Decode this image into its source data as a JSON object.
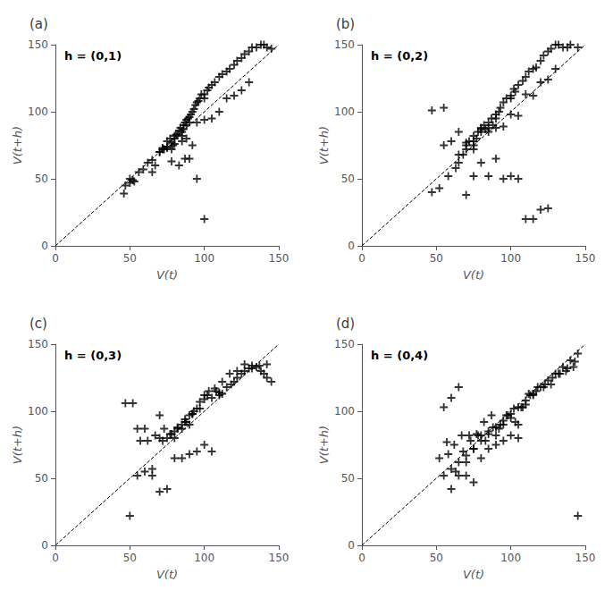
{
  "chart_data": [
    {
      "type": "scatter",
      "title": "(a)",
      "annotation": "h = (0,1)",
      "xlabel": "V(t)",
      "ylabel": "V(t+h)",
      "xlim": [
        0,
        150
      ],
      "ylim": [
        0,
        150
      ],
      "xticks": [
        0,
        50,
        100,
        150
      ],
      "yticks": [
        0,
        50,
        100,
        150
      ],
      "grid": false,
      "series": [
        {
          "type": "scatter",
          "marker": "+",
          "color": "black",
          "x": [
            46,
            47,
            50,
            53,
            56,
            59,
            62,
            65,
            67,
            70,
            72,
            73,
            75,
            75,
            77,
            78,
            78,
            79,
            80,
            80,
            81,
            82,
            83,
            84,
            85,
            85,
            86,
            86,
            87,
            88,
            88,
            89,
            90,
            90,
            91,
            92,
            93,
            94,
            95,
            96,
            97,
            98,
            100,
            100,
            102,
            103,
            105,
            107,
            110,
            112,
            115,
            117,
            120,
            122,
            125,
            127,
            130,
            132,
            135,
            138,
            140,
            142,
            145,
            80,
            85,
            88,
            92,
            95,
            100,
            105,
            110,
            115,
            120,
            125,
            130,
            90,
            95,
            100,
            78,
            83,
            87,
            50,
            52,
            65,
            70,
            72,
            75
          ],
          "values": [
            39,
            45,
            50,
            48,
            55,
            57,
            62,
            64,
            60,
            70,
            73,
            72,
            78,
            74,
            80,
            77,
            72,
            75,
            80,
            76,
            83,
            83,
            86,
            88,
            82,
            85,
            90,
            87,
            92,
            94,
            90,
            95,
            96,
            92,
            98,
            100,
            102,
            105,
            107,
            108,
            110,
            113,
            113,
            110,
            116,
            118,
            120,
            122,
            126,
            128,
            130,
            132,
            135,
            138,
            140,
            143,
            145,
            148,
            148,
            150,
            150,
            148,
            147,
            82,
            78,
            80,
            75,
            92,
            94,
            95,
            100,
            110,
            112,
            116,
            122,
            65,
            50,
            20,
            63,
            60,
            65,
            47,
            49,
            55,
            70,
            72,
            73
          ]
        },
        {
          "type": "line",
          "line_style": "dashed",
          "color": "black",
          "x": [
            0,
            150
          ],
          "values": [
            0,
            150
          ]
        }
      ]
    },
    {
      "type": "scatter",
      "title": "(b)",
      "annotation": "h = (0,2)",
      "xlabel": "V(t)",
      "ylabel": "V(t+h)",
      "xlim": [
        0,
        150
      ],
      "ylim": [
        0,
        150
      ],
      "xticks": [
        0,
        50,
        100,
        150
      ],
      "yticks": [
        0,
        50,
        100,
        150
      ],
      "grid": false,
      "series": [
        {
          "type": "scatter",
          "marker": "+",
          "color": "black",
          "x": [
            47,
            52,
            58,
            63,
            65,
            68,
            70,
            72,
            75,
            75,
            77,
            78,
            80,
            80,
            82,
            83,
            85,
            85,
            87,
            88,
            90,
            90,
            92,
            93,
            95,
            97,
            100,
            100,
            102,
            103,
            105,
            108,
            110,
            112,
            115,
            117,
            120,
            122,
            125,
            127,
            130,
            132,
            135,
            138,
            140,
            145,
            47,
            55,
            65,
            70,
            75,
            80,
            85,
            90,
            95,
            100,
            105,
            110,
            115,
            120,
            125,
            130,
            70,
            75,
            80,
            85,
            90,
            95,
            100,
            105,
            110,
            115,
            120,
            125,
            60,
            65,
            70,
            75,
            55
          ],
          "values": [
            40,
            43,
            52,
            58,
            62,
            68,
            72,
            78,
            75,
            82,
            80,
            85,
            88,
            85,
            90,
            87,
            92,
            88,
            95,
            90,
            98,
            95,
            100,
            103,
            107,
            110,
            112,
            110,
            117,
            115,
            120,
            123,
            126,
            130,
            132,
            133,
            138,
            142,
            145,
            147,
            150,
            150,
            148,
            148,
            150,
            148,
            101,
            75,
            68,
            77,
            78,
            87,
            85,
            88,
            89,
            98,
            97,
            113,
            112,
            122,
            124,
            132,
            38,
            52,
            62,
            52,
            65,
            50,
            52,
            50,
            20,
            20,
            27,
            28,
            78,
            85,
            75,
            72,
            103
          ]
        },
        {
          "type": "line",
          "line_style": "dashed",
          "color": "black",
          "x": [
            0,
            150
          ],
          "values": [
            0,
            150
          ]
        }
      ]
    },
    {
      "type": "scatter",
      "title": "(c)",
      "annotation": "h = (0,3)",
      "xlabel": "V(t)",
      "ylabel": "V(t+h)",
      "xlim": [
        0,
        150
      ],
      "ylim": [
        0,
        150
      ],
      "xticks": [
        0,
        50,
        100,
        150
      ],
      "yticks": [
        0,
        50,
        100,
        150
      ],
      "grid": false,
      "series": [
        {
          "type": "scatter",
          "marker": "+",
          "color": "black",
          "x": [
            50,
            55,
            60,
            65,
            70,
            73,
            75,
            78,
            80,
            80,
            82,
            85,
            85,
            87,
            88,
            90,
            90,
            92,
            93,
            95,
            97,
            100,
            100,
            103,
            105,
            108,
            110,
            112,
            115,
            118,
            120,
            122,
            125,
            127,
            130,
            132,
            135,
            138,
            140,
            142,
            145,
            47,
            52,
            57,
            62,
            67,
            72,
            77,
            82,
            87,
            92,
            97,
            102,
            107,
            112,
            117,
            122,
            127,
            132,
            137,
            142,
            70,
            75,
            80,
            85,
            90,
            95,
            100,
            105,
            110,
            55,
            60,
            65,
            70
          ],
          "values": [
            22,
            52,
            55,
            52,
            80,
            87,
            80,
            83,
            80,
            85,
            87,
            90,
            87,
            94,
            92,
            97,
            90,
            98,
            100,
            102,
            107,
            112,
            109,
            115,
            110,
            115,
            114,
            113,
            118,
            120,
            122,
            125,
            128,
            130,
            132,
            134,
            133,
            130,
            128,
            125,
            122,
            106,
            106,
            78,
            78,
            82,
            78,
            83,
            88,
            92,
            98,
            102,
            112,
            117,
            122,
            128,
            130,
            135,
            132,
            134,
            135,
            40,
            42,
            65,
            65,
            68,
            70,
            75,
            70,
            112,
            87,
            87,
            57,
            97
          ]
        },
        {
          "type": "line",
          "line_style": "dashed",
          "color": "black",
          "x": [
            0,
            150
          ],
          "values": [
            0,
            150
          ]
        }
      ]
    },
    {
      "type": "scatter",
      "title": "(d)",
      "annotation": "h = (0,4)",
      "xlabel": "V(t)",
      "ylabel": "V(t+h)",
      "xlim": [
        0,
        150
      ],
      "ylim": [
        0,
        150
      ],
      "xticks": [
        0,
        50,
        100,
        150
      ],
      "yticks": [
        0,
        50,
        100,
        150
      ],
      "grid": false,
      "series": [
        {
          "type": "scatter",
          "marker": "+",
          "color": "black",
          "x": [
            55,
            60,
            65,
            70,
            75,
            80,
            85,
            90,
            95,
            100,
            105,
            110,
            115,
            120,
            125,
            130,
            135,
            140,
            145,
            52,
            58,
            63,
            68,
            73,
            78,
            83,
            88,
            93,
            98,
            103,
            108,
            113,
            118,
            123,
            128,
            133,
            138,
            143,
            57,
            62,
            67,
            72,
            77,
            82,
            87,
            92,
            97,
            102,
            107,
            112,
            117,
            122,
            127,
            132,
            137,
            142,
            70,
            75,
            80,
            85,
            90,
            95,
            100,
            105,
            55,
            60,
            65,
            145,
            60,
            65,
            70,
            75,
            80,
            85,
            90,
            95,
            100,
            105,
            110,
            115
          ],
          "values": [
            52,
            57,
            62,
            67,
            72,
            78,
            83,
            88,
            93,
            98,
            103,
            108,
            113,
            118,
            123,
            128,
            133,
            138,
            143,
            65,
            68,
            55,
            70,
            78,
            82,
            78,
            88,
            90,
            97,
            92,
            103,
            112,
            118,
            120,
            125,
            128,
            132,
            137,
            77,
            75,
            82,
            82,
            83,
            92,
            97,
            87,
            97,
            102,
            103,
            113,
            115,
            118,
            120,
            128,
            130,
            133,
            52,
            47,
            65,
            72,
            75,
            78,
            82,
            80,
            103,
            110,
            118,
            22,
            42,
            52,
            62,
            72,
            82,
            85,
            82,
            90,
            95,
            90,
            105,
            112
          ]
        },
        {
          "type": "line",
          "line_style": "dashed",
          "color": "black",
          "x": [
            0,
            150
          ],
          "values": [
            0,
            150
          ]
        }
      ]
    }
  ]
}
